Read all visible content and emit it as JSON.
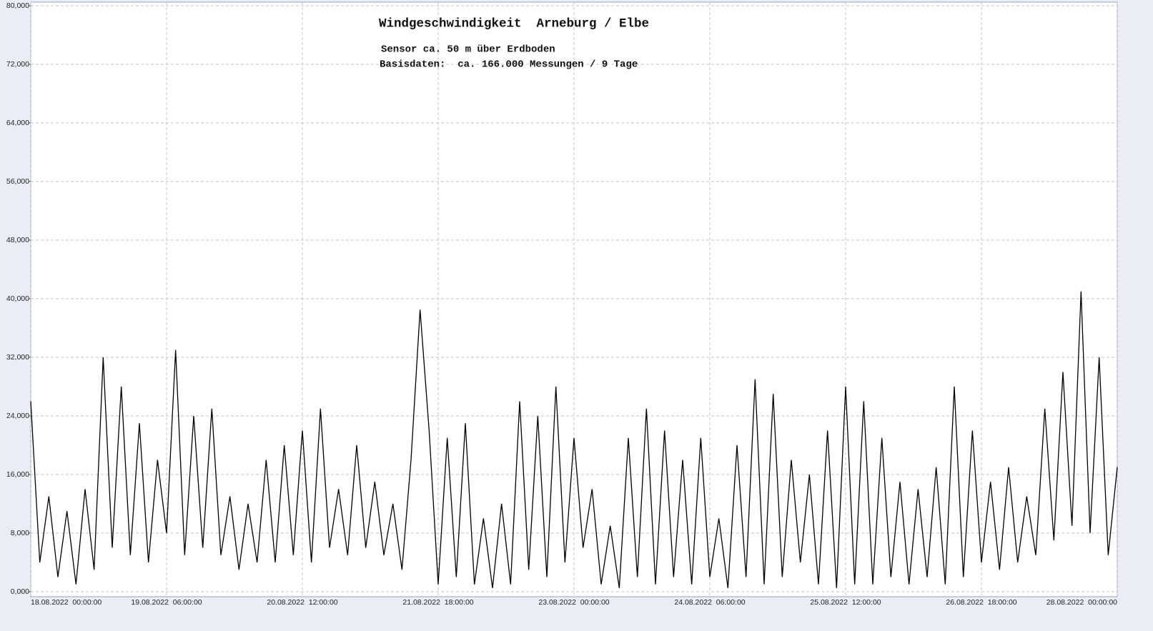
{
  "chart_data": {
    "type": "line",
    "title": "Windgeschwindigkeit  Arneburg / Elbe",
    "subtitle": [
      "Sensor ca. 50 m über Erdboden",
      "Basisdaten:  ca. 166.000 Messungen / 9 Tage"
    ],
    "grid": true,
    "ylim": [
      0,
      80
    ],
    "yticks": [
      {
        "value": 0,
        "label": "0,000"
      },
      {
        "value": 8,
        "label": "8,000"
      },
      {
        "value": 16,
        "label": "16,000"
      },
      {
        "value": 24,
        "label": "24,000"
      },
      {
        "value": 32,
        "label": "32,000"
      },
      {
        "value": 40,
        "label": "40,000"
      },
      {
        "value": 48,
        "label": "48,000"
      },
      {
        "value": 56,
        "label": "56,000"
      },
      {
        "value": 64,
        "label": "64,000"
      },
      {
        "value": 72,
        "label": "72,000"
      },
      {
        "value": 80,
        "label": "80,000"
      }
    ],
    "xlim": [
      "18.08.2022 00:00:00",
      "28.08.2022 00:00:00"
    ],
    "xticks": [
      {
        "value": "18.08.2022 00:00:00",
        "label": "18.08.2022  00:00:00"
      },
      {
        "value": "19.08.2022 06:00:00",
        "label": "19.08.2022  06:00:00"
      },
      {
        "value": "20.08.2022 12:00:00",
        "label": "20.08.2022  12:00:00"
      },
      {
        "value": "21.08.2022 18:00:00",
        "label": "21.08.2022  18:00:00"
      },
      {
        "value": "23.08.2022 00:00:00",
        "label": "23.08.2022  00:00:00"
      },
      {
        "value": "24.08.2022 06:00:00",
        "label": "24.08.2022  06:00:00"
      },
      {
        "value": "25.08.2022 12:00:00",
        "label": "25.08.2022  12:00:00"
      },
      {
        "value": "26.08.2022 18:00:00",
        "label": "26.08.2022  18:00:00"
      },
      {
        "value": "28.08.2022 00:00:00",
        "label": "28.08.2022  00:00:00"
      }
    ],
    "color": "#000000",
    "x": [
      "18.08.2022 00:00:00",
      "18.08.2022 02:00:00",
      "18.08.2022 04:00:00",
      "18.08.2022 06:00:00",
      "18.08.2022 08:00:00",
      "18.08.2022 10:00:00",
      "18.08.2022 12:00:00",
      "18.08.2022 14:00:00",
      "18.08.2022 16:00:00",
      "18.08.2022 18:00:00",
      "18.08.2022 20:00:00",
      "18.08.2022 22:00:00",
      "19.08.2022 00:00:00",
      "19.08.2022 02:00:00",
      "19.08.2022 04:00:00",
      "19.08.2022 06:00:00",
      "19.08.2022 08:00:00",
      "19.08.2022 10:00:00",
      "19.08.2022 12:00:00",
      "19.08.2022 14:00:00",
      "19.08.2022 16:00:00",
      "19.08.2022 18:00:00",
      "19.08.2022 20:00:00",
      "19.08.2022 22:00:00",
      "20.08.2022 00:00:00",
      "20.08.2022 02:00:00",
      "20.08.2022 04:00:00",
      "20.08.2022 06:00:00",
      "20.08.2022 08:00:00",
      "20.08.2022 10:00:00",
      "20.08.2022 12:00:00",
      "20.08.2022 14:00:00",
      "20.08.2022 16:00:00",
      "20.08.2022 18:00:00",
      "20.08.2022 20:00:00",
      "20.08.2022 22:00:00",
      "21.08.2022 00:00:00",
      "21.08.2022 02:00:00",
      "21.08.2022 04:00:00",
      "21.08.2022 06:00:00",
      "21.08.2022 08:00:00",
      "21.08.2022 10:00:00",
      "21.08.2022 12:00:00",
      "21.08.2022 14:00:00",
      "21.08.2022 16:00:00",
      "21.08.2022 18:00:00",
      "21.08.2022 20:00:00",
      "21.08.2022 22:00:00",
      "22.08.2022 00:00:00",
      "22.08.2022 02:00:00",
      "22.08.2022 04:00:00",
      "22.08.2022 06:00:00",
      "22.08.2022 08:00:00",
      "22.08.2022 10:00:00",
      "22.08.2022 12:00:00",
      "22.08.2022 14:00:00",
      "22.08.2022 16:00:00",
      "22.08.2022 18:00:00",
      "22.08.2022 20:00:00",
      "22.08.2022 22:00:00",
      "23.08.2022 00:00:00",
      "23.08.2022 02:00:00",
      "23.08.2022 04:00:00",
      "23.08.2022 06:00:00",
      "23.08.2022 08:00:00",
      "23.08.2022 10:00:00",
      "23.08.2022 12:00:00",
      "23.08.2022 14:00:00",
      "23.08.2022 16:00:00",
      "23.08.2022 18:00:00",
      "23.08.2022 20:00:00",
      "23.08.2022 22:00:00",
      "24.08.2022 00:00:00",
      "24.08.2022 02:00:00",
      "24.08.2022 04:00:00",
      "24.08.2022 06:00:00",
      "24.08.2022 08:00:00",
      "24.08.2022 10:00:00",
      "24.08.2022 12:00:00",
      "24.08.2022 14:00:00",
      "24.08.2022 16:00:00",
      "24.08.2022 18:00:00",
      "24.08.2022 20:00:00",
      "24.08.2022 22:00:00",
      "25.08.2022 00:00:00",
      "25.08.2022 02:00:00",
      "25.08.2022 04:00:00",
      "25.08.2022 06:00:00",
      "25.08.2022 08:00:00",
      "25.08.2022 10:00:00",
      "25.08.2022 12:00:00",
      "25.08.2022 14:00:00",
      "25.08.2022 16:00:00",
      "25.08.2022 18:00:00",
      "25.08.2022 20:00:00",
      "25.08.2022 22:00:00",
      "26.08.2022 00:00:00",
      "26.08.2022 02:00:00",
      "26.08.2022 04:00:00",
      "26.08.2022 06:00:00",
      "26.08.2022 08:00:00",
      "26.08.2022 10:00:00",
      "26.08.2022 12:00:00",
      "26.08.2022 14:00:00",
      "26.08.2022 16:00:00",
      "26.08.2022 18:00:00",
      "26.08.2022 20:00:00",
      "26.08.2022 22:00:00",
      "27.08.2022 00:00:00",
      "27.08.2022 02:00:00",
      "27.08.2022 04:00:00",
      "27.08.2022 06:00:00",
      "27.08.2022 08:00:00",
      "27.08.2022 10:00:00",
      "27.08.2022 12:00:00",
      "27.08.2022 14:00:00",
      "27.08.2022 16:00:00",
      "27.08.2022 18:00:00",
      "27.08.2022 20:00:00",
      "27.08.2022 22:00:00",
      "28.08.2022 00:00:00"
    ],
    "values": [
      26,
      4,
      13,
      2,
      11,
      1,
      14,
      3,
      32,
      6,
      28,
      5,
      23,
      4,
      18,
      8,
      33,
      5,
      24,
      6,
      25,
      5,
      13,
      3,
      12,
      4,
      18,
      4,
      20,
      5,
      22,
      4,
      25,
      6,
      14,
      5,
      20,
      6,
      15,
      5,
      12,
      3,
      18,
      38.5,
      22,
      1,
      21,
      2,
      23,
      1,
      10,
      0.5,
      12,
      1,
      26,
      3,
      24,
      2,
      28,
      4,
      21,
      6,
      14,
      1,
      9,
      0.5,
      21,
      2,
      25,
      1,
      22,
      2,
      18,
      1,
      21,
      2,
      10,
      0.5,
      20,
      2,
      29,
      1,
      27,
      2,
      18,
      4,
      16,
      1,
      22,
      0.5,
      28,
      1,
      26,
      1,
      21,
      2,
      15,
      1,
      14,
      2,
      17,
      1,
      28,
      2,
      22,
      4,
      15,
      3,
      17,
      4,
      13,
      5,
      25,
      7,
      30,
      9,
      41,
      8,
      32,
      5,
      17
    ]
  }
}
